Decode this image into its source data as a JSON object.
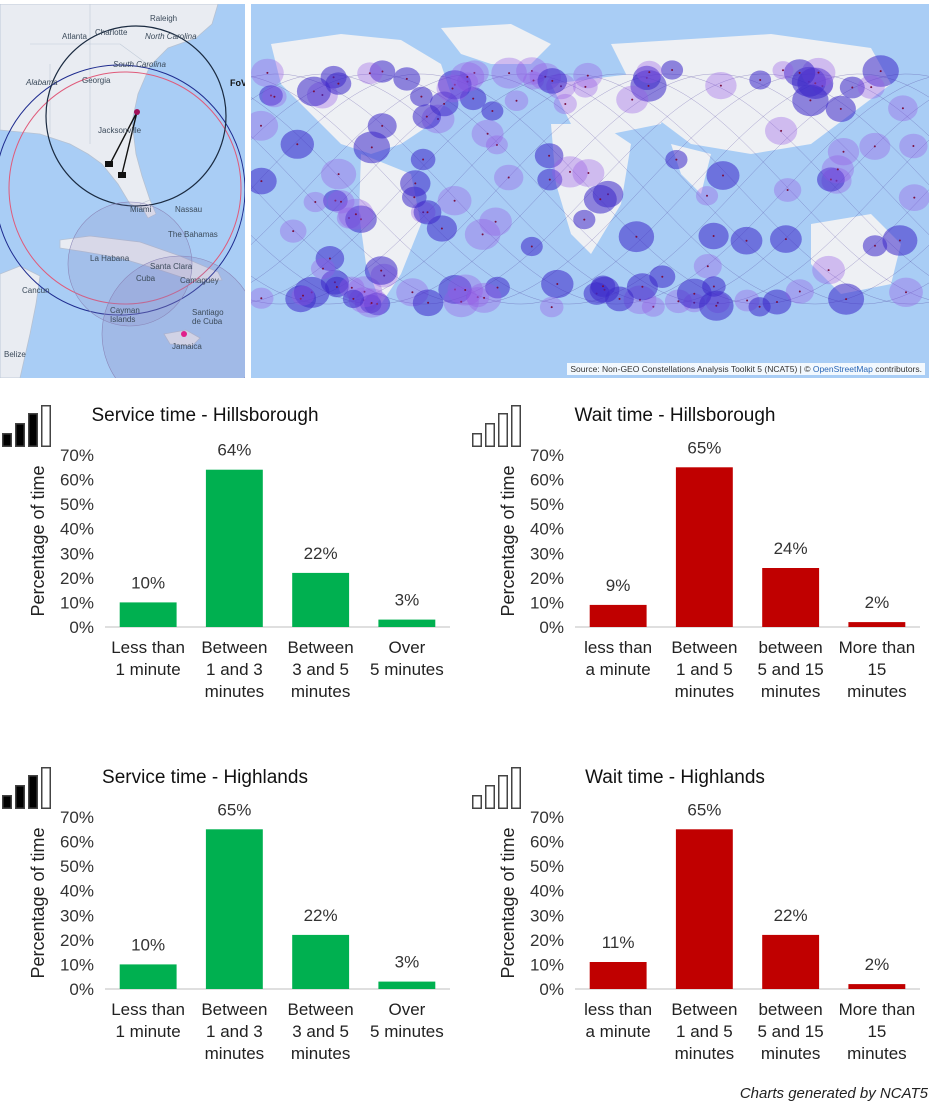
{
  "maps": {
    "left": {
      "labels": [
        "Raleigh",
        "Charlotte",
        "Atlanta",
        "Georgia",
        "South Carolina",
        "North Carolina",
        "Alabama",
        "Jacksonville",
        "Miami",
        "Nassau",
        "The Bahamas",
        "La Habana",
        "Santa Clara",
        "Cuba",
        "Camaguey",
        "Cancun",
        "Cayman Islands",
        "Santiago de Cuba",
        "Jamaica",
        "Belize",
        "FoV"
      ]
    },
    "right": {
      "source_prefix": "Source: Non-GEO Constellations Analysis Toolkit 5 (NCAT5) | © ",
      "source_link": "OpenStreetMap",
      "source_suffix": " contributors."
    }
  },
  "charts": [
    {
      "id": "service-hillsborough",
      "title": "Service time - Hillsborough",
      "signal_icon": "signal-strength-filled",
      "color": "#00b050",
      "chart_data": {
        "type": "bar",
        "categories": [
          [
            "Less than",
            "1 minute"
          ],
          [
            "Between",
            "1 and 3",
            "minutes"
          ],
          [
            "Between",
            "3 and 5",
            "minutes"
          ],
          [
            "Over",
            "5 minutes"
          ]
        ],
        "values": [
          10,
          64,
          22,
          3
        ],
        "data_labels": [
          "10%",
          "64%",
          "22%",
          "3%"
        ],
        "ylabel": "Percentage of time",
        "yticks": [
          "0%",
          "10%",
          "20%",
          "30%",
          "40%",
          "50%",
          "60%",
          "70%"
        ],
        "ylim": [
          0,
          70
        ]
      }
    },
    {
      "id": "wait-hillsborough",
      "title": "Wait time - Hillsborough",
      "signal_icon": "signal-strength-outline",
      "color": "#c00000",
      "chart_data": {
        "type": "bar",
        "categories": [
          [
            "less than",
            "a minute"
          ],
          [
            "Between",
            "1 and 5",
            "minutes"
          ],
          [
            "between",
            "5 and 15",
            "minutes"
          ],
          [
            "More than",
            "15",
            "minutes"
          ]
        ],
        "values": [
          9,
          65,
          24,
          2
        ],
        "data_labels": [
          "9%",
          "65%",
          "24%",
          "2%"
        ],
        "ylabel": "Percentage of time",
        "yticks": [
          "0%",
          "10%",
          "20%",
          "30%",
          "40%",
          "50%",
          "60%",
          "70%"
        ],
        "ylim": [
          0,
          70
        ]
      }
    },
    {
      "id": "service-highlands",
      "title": "Service time - Highlands",
      "signal_icon": "signal-strength-filled",
      "color": "#00b050",
      "chart_data": {
        "type": "bar",
        "categories": [
          [
            "Less than",
            "1 minute"
          ],
          [
            "Between",
            "1 and 3",
            "minutes"
          ],
          [
            "Between",
            "3 and 5",
            "minutes"
          ],
          [
            "Over",
            "5 minutes"
          ]
        ],
        "values": [
          10,
          65,
          22,
          3
        ],
        "data_labels": [
          "10%",
          "65%",
          "22%",
          "3%"
        ],
        "ylabel": "Percentage of time",
        "yticks": [
          "0%",
          "10%",
          "20%",
          "30%",
          "40%",
          "50%",
          "60%",
          "70%"
        ],
        "ylim": [
          0,
          70
        ]
      }
    },
    {
      "id": "wait-highlands",
      "title": "Wait time - Highlands",
      "signal_icon": "signal-strength-outline",
      "color": "#c00000",
      "chart_data": {
        "type": "bar",
        "categories": [
          [
            "less than",
            "a minute"
          ],
          [
            "Between",
            "1 and 5",
            "minutes"
          ],
          [
            "between",
            "5 and 15",
            "minutes"
          ],
          [
            "More than",
            "15",
            "minutes"
          ]
        ],
        "values": [
          11,
          65,
          22,
          2
        ],
        "data_labels": [
          "11%",
          "65%",
          "22%",
          "2%"
        ],
        "ylabel": "Percentage of time",
        "yticks": [
          "0%",
          "10%",
          "20%",
          "30%",
          "40%",
          "50%",
          "60%",
          "70%"
        ],
        "ylim": [
          0,
          70
        ]
      }
    }
  ],
  "footer": {
    "credit": "Charts generated by NCAT5"
  }
}
